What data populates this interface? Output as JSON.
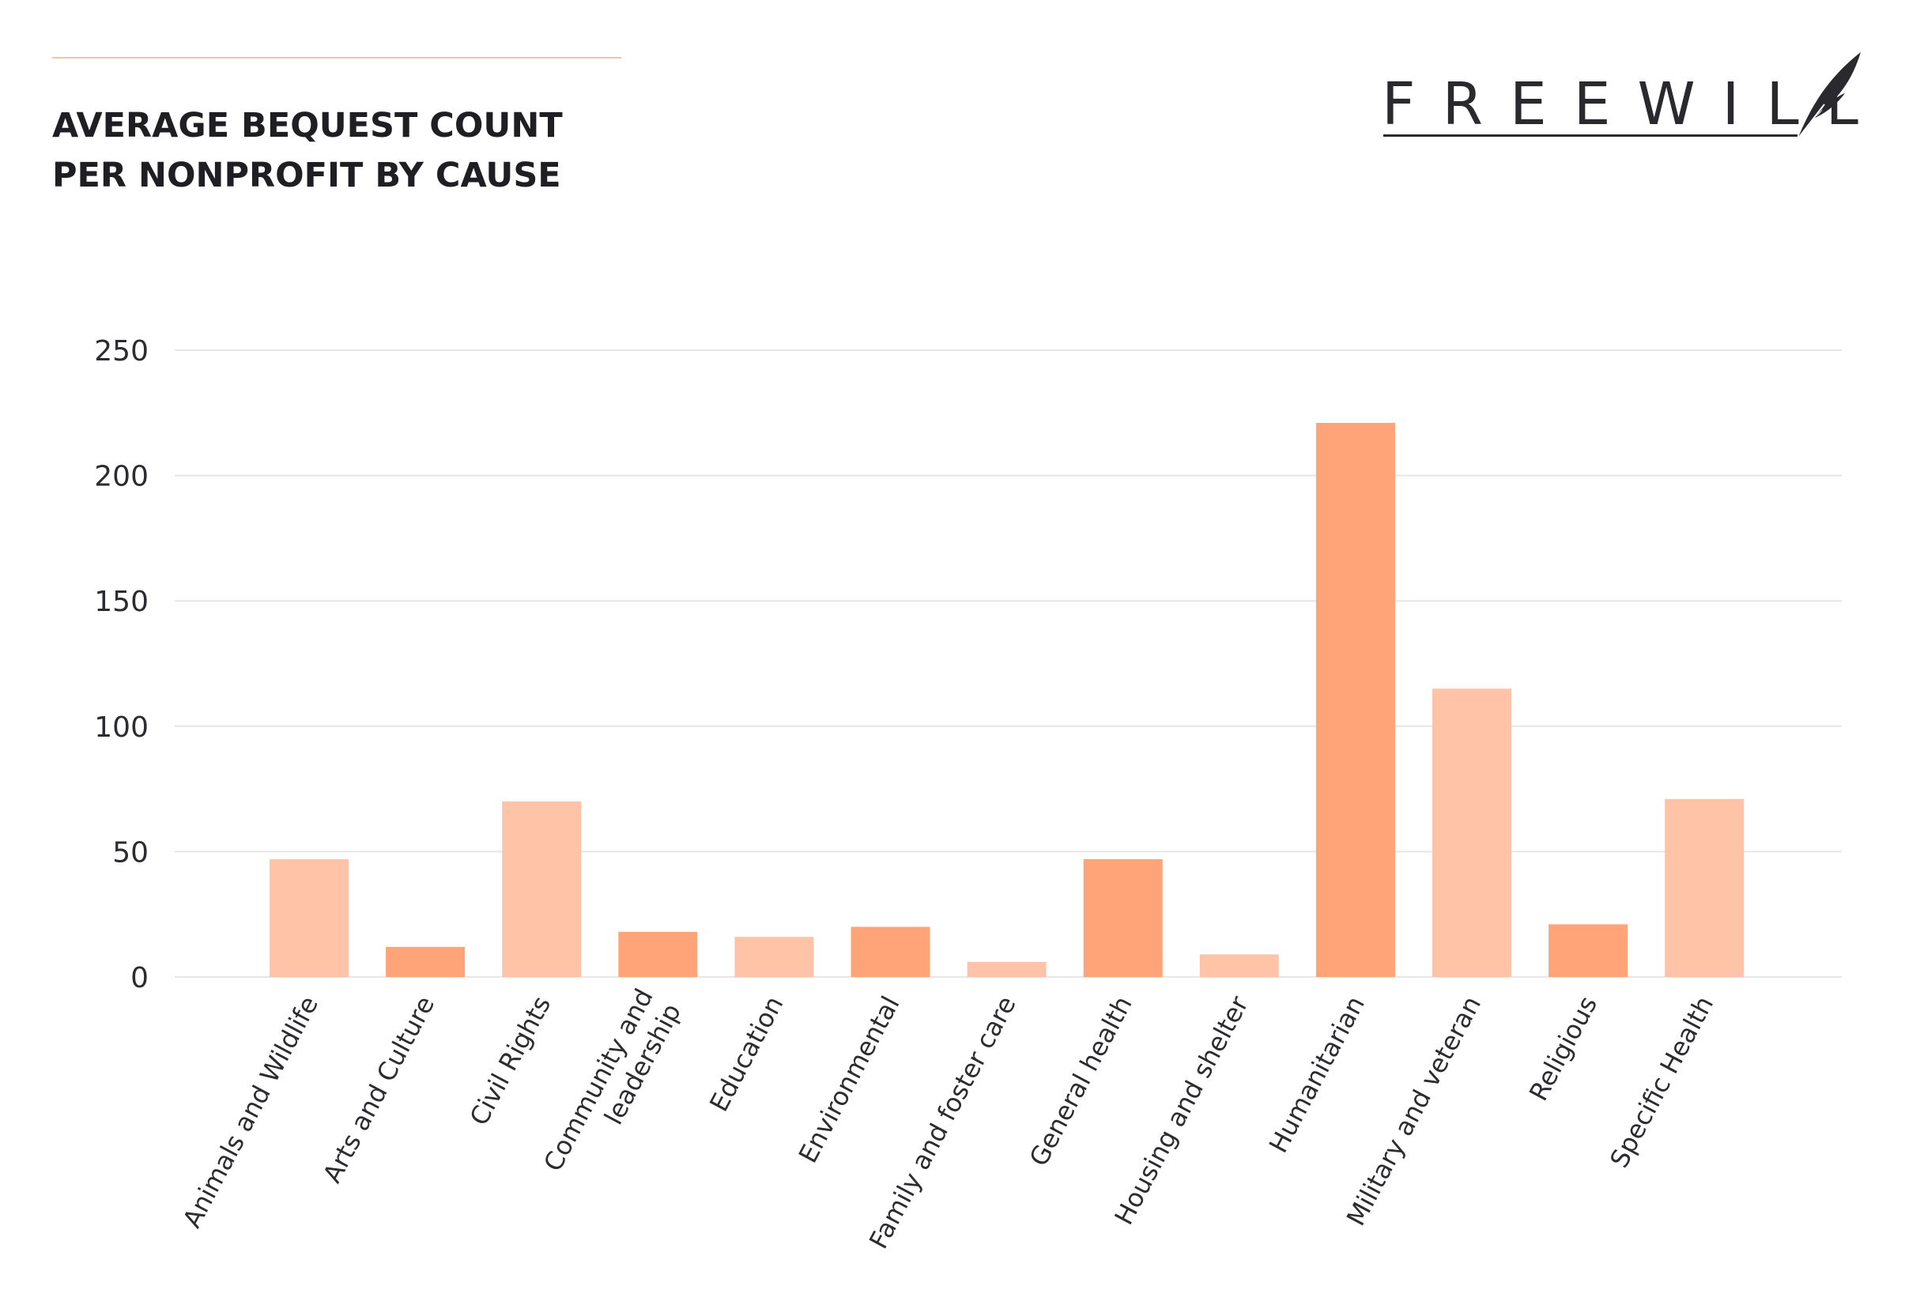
{
  "header": {
    "title_line1": "AVERAGE BEQUEST COUNT",
    "title_line2": "PER NONPROFIT BY CAUSE",
    "logo_text": "FREEWILL",
    "logo_icon": "quill-feather-icon"
  },
  "colors": {
    "bar_light": "#ffc3a8",
    "bar_dark": "#ffa478",
    "grid": "#e6e6e6",
    "axis_text": "#2b2b30",
    "title_rule": "#f6c2a6",
    "logo": "#2a2a2e"
  },
  "chart_data": {
    "type": "bar",
    "title": "AVERAGE BEQUEST COUNT PER NONPROFIT BY CAUSE",
    "xlabel": "",
    "ylabel": "",
    "ylim": [
      0,
      250
    ],
    "yticks": [
      0,
      50,
      100,
      150,
      200,
      250
    ],
    "grid": true,
    "legend": "none",
    "categories": [
      "Animals and Wildlife",
      "Arts and Culture",
      "Civil Rights",
      "Community and leadership",
      "Education",
      "Environmental",
      "Family and foster care",
      "General health",
      "Housing and shelter",
      "Humanitarian",
      "Military and veteran",
      "Religious",
      "Specific Health"
    ],
    "category_label_lines": [
      [
        "Animals and Wildlife"
      ],
      [
        "Arts and Culture"
      ],
      [
        "Civil Rights"
      ],
      [
        "Community and",
        "leadership"
      ],
      [
        "Education"
      ],
      [
        "Environmental"
      ],
      [
        "Family and foster care"
      ],
      [
        "General health"
      ],
      [
        "Housing and shelter"
      ],
      [
        "Humanitarian"
      ],
      [
        "Military and veteran"
      ],
      [
        "Religious"
      ],
      [
        "Specific Health"
      ]
    ],
    "values": [
      47,
      12,
      70,
      18,
      16,
      20,
      6,
      47,
      9,
      221,
      115,
      21,
      71
    ],
    "bar_colors": [
      "#ffc3a8",
      "#ffa478",
      "#ffc3a8",
      "#ffa478",
      "#ffc3a8",
      "#ffa478",
      "#ffc3a8",
      "#ffa478",
      "#ffc3a8",
      "#ffa478",
      "#ffc3a8",
      "#ffa478",
      "#ffc3a8"
    ]
  }
}
